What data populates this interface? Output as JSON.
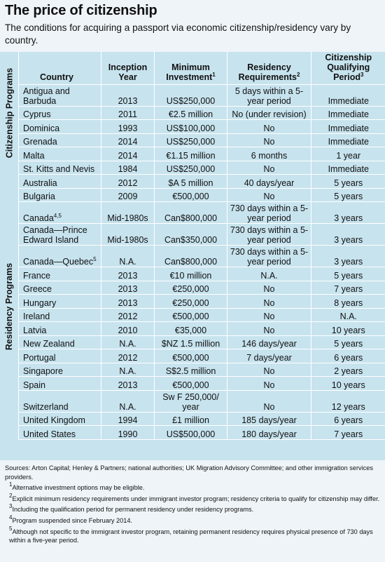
{
  "title": "The price of citizenship",
  "subtitle": "The conditions for acquiring a passport via economic citizenship/residency vary by country.",
  "sections": {
    "citizenship": "Citizenship Programs",
    "residency": "Residency Programs"
  },
  "headers": {
    "country": "Country",
    "inception": "Inception Year",
    "investment": "Minimum Investment",
    "investment_sup": "1",
    "residency": "Residency Requirements",
    "residency_sup": "2",
    "period": "Citizenship Qualifying Period",
    "period_sup": "3"
  },
  "citizenship_rows": [
    {
      "country": "Antigua and Barbuda",
      "sup": "",
      "year": "2013",
      "investment": "US$250,000",
      "residency": "5 days within a 5-year period",
      "period": "Immediate"
    },
    {
      "country": "Cyprus",
      "sup": "",
      "year": "2011",
      "investment": "€2.5 million",
      "residency": "No (under revision)",
      "period": "Immediate"
    },
    {
      "country": "Dominica",
      "sup": "",
      "year": "1993",
      "investment": "US$100,000",
      "residency": "No",
      "period": "Immediate"
    },
    {
      "country": "Grenada",
      "sup": "",
      "year": "2014",
      "investment": "US$250,000",
      "residency": "No",
      "period": "Immediate"
    },
    {
      "country": "Malta",
      "sup": "",
      "year": "2014",
      "investment": "€1.15 million",
      "residency": "6 months",
      "period": "1 year"
    },
    {
      "country": "St. Kitts and Nevis",
      "sup": "",
      "year": "1984",
      "investment": "US$250,000",
      "residency": "No",
      "period": "Immediate"
    }
  ],
  "residency_rows": [
    {
      "country": "Australia",
      "sup": "",
      "year": "2012",
      "investment": "$A 5 million",
      "residency": "40 days/year",
      "period": "5 years"
    },
    {
      "country": "Bulgaria",
      "sup": "",
      "year": "2009",
      "investment": "€500,000",
      "residency": "No",
      "period": "5 years"
    },
    {
      "country": "Canada",
      "sup": "4,5",
      "year": "Mid-1980s",
      "investment": "Can$800,000",
      "residency": "730 days within a 5-year period",
      "period": "3 years"
    },
    {
      "country": "Canada—Prince Edward Island",
      "sup": "",
      "year": "Mid-1980s",
      "investment": "Can$350,000",
      "residency": "730 days within a 5-year period",
      "period": "3 years"
    },
    {
      "country": "Canada—Quebec",
      "sup": "5",
      "year": "N.A.",
      "investment": "Can$800,000",
      "residency": "730 days within a 5-year period",
      "period": "3 years"
    },
    {
      "country": "France",
      "sup": "",
      "year": "2013",
      "investment": "€10 million",
      "residency": "N.A.",
      "period": "5 years"
    },
    {
      "country": "Greece",
      "sup": "",
      "year": "2013",
      "investment": "€250,000",
      "residency": "No",
      "period": "7 years"
    },
    {
      "country": "Hungary",
      "sup": "",
      "year": "2013",
      "investment": "€250,000",
      "residency": "No",
      "period": "8 years"
    },
    {
      "country": "Ireland",
      "sup": "",
      "year": "2012",
      "investment": "€500,000",
      "residency": "No",
      "period": "N.A."
    },
    {
      "country": "Latvia",
      "sup": "",
      "year": "2010",
      "investment": "€35,000",
      "residency": "No",
      "period": "10 years"
    },
    {
      "country": "New Zealand",
      "sup": "",
      "year": "N.A.",
      "investment": "$NZ 1.5 million",
      "residency": "146 days/year",
      "period": "5 years"
    },
    {
      "country": "Portugal",
      "sup": "",
      "year": "2012",
      "investment": "€500,000",
      "residency": "7 days/year",
      "period": "6 years"
    },
    {
      "country": "Singapore",
      "sup": "",
      "year": "N.A.",
      "investment": "S$2.5 million",
      "residency": "No",
      "period": "2 years"
    },
    {
      "country": "Spain",
      "sup": "",
      "year": "2013",
      "investment": "€500,000",
      "residency": "No",
      "period": "10 years"
    },
    {
      "country": "Switzerland",
      "sup": "",
      "year": "N.A.",
      "investment": "Sw F 250,000/ year",
      "residency": "No",
      "period": "12 years"
    },
    {
      "country": "United Kingdom",
      "sup": "",
      "year": "1994",
      "investment": "£1 million",
      "residency": "185 days/year",
      "period": "6 years"
    },
    {
      "country": "United States",
      "sup": "",
      "year": "1990",
      "investment": "US$500,000",
      "residency": "180 days/year",
      "period": "7 years"
    }
  ],
  "footer": {
    "sources": "Sources: Arton Capital; Henley & Partners; national authorities; UK Migration Advisory Committee; and other immigration services providers.",
    "notes": [
      {
        "num": "1",
        "text": "Alternative investment options may be eligible."
      },
      {
        "num": "2",
        "text": "Explicit minimum residency requirements under immigrant investor program; residency criteria to qualify for citizenship may differ."
      },
      {
        "num": "3",
        "text": "Including the qualification period for permanent residency under residency programs."
      },
      {
        "num": "4",
        "text": "Program suspended since February 2014."
      },
      {
        "num": "5",
        "text": "Although not specific to the immigrant investor program, retaining permanent residency requires physical presence of 730 days within a five-year period."
      }
    ]
  }
}
